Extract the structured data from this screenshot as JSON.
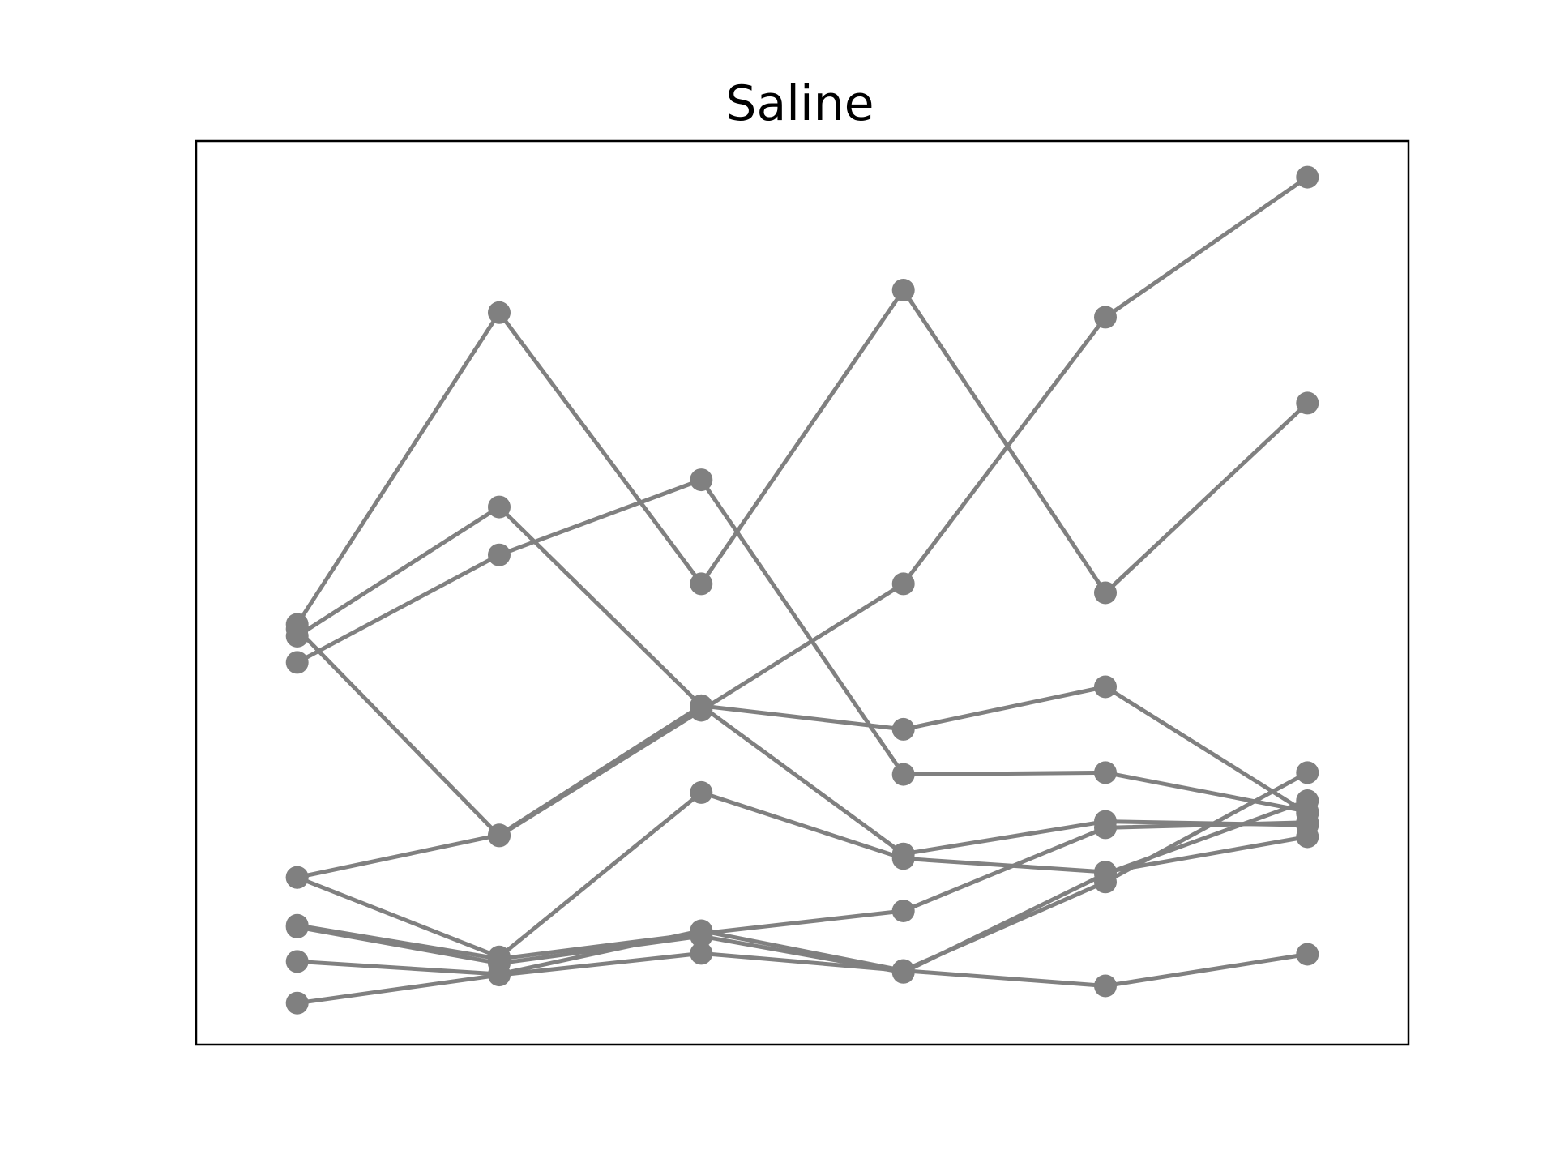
{
  "chart_data": {
    "type": "line",
    "title": "Saline",
    "xlabel": "",
    "ylabel": "",
    "x": [
      1,
      2,
      3,
      4,
      5,
      6
    ],
    "xlim": [
      0.5,
      6.5
    ],
    "ylim": [
      0,
      100
    ],
    "grid": false,
    "axis_ticks": false,
    "colors": {
      "series": "#808080",
      "frame": "#000000",
      "background": "#ffffff"
    },
    "series": [
      {
        "values": [
          46.5,
          81.0,
          51.0,
          83.5,
          50.0,
          71.0
        ]
      },
      {
        "values": [
          45.2,
          59.5,
          37.5,
          34.9,
          39.6,
          25.6
        ]
      },
      {
        "values": [
          42.3,
          54.2,
          62.5,
          29.9,
          30.1,
          25.8
        ]
      },
      {
        "values": [
          18.5,
          23.2,
          37.5,
          21.1,
          24.7,
          24.3
        ]
      },
      {
        "values": [
          13.2,
          9.5,
          12.3,
          14.8,
          24.0,
          24.6
        ]
      },
      {
        "values": [
          9.2,
          7.8,
          12.6,
          8.2,
          6.5,
          10.0
        ]
      },
      {
        "values": [
          4.6,
          7.7,
          10.1,
          8.2,
          18.0,
          30.1
        ]
      },
      {
        "values": [
          46.0,
          23.1,
          37.0,
          51.0,
          80.5,
          96.0
        ]
      },
      {
        "values": [
          18.5,
          9.7,
          27.9,
          20.6,
          19.1,
          23.0
        ]
      },
      {
        "values": [
          13.0,
          9.0,
          12.0,
          8.0,
          18.9,
          27.0
        ]
      }
    ]
  }
}
